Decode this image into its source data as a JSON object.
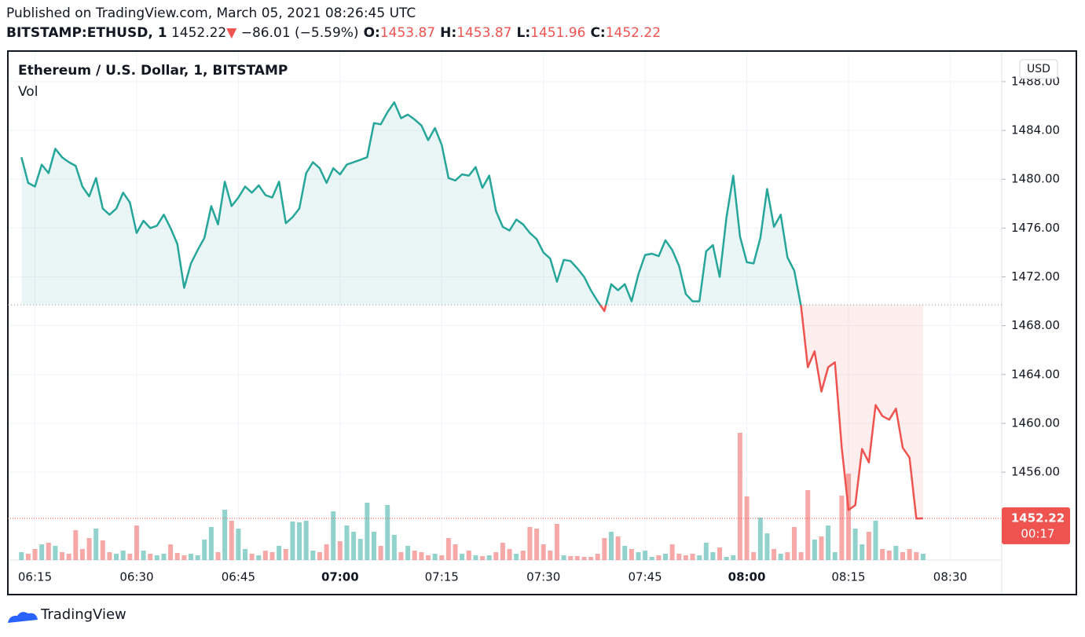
{
  "header": {
    "published": "Published on TradingView.com, March 05, 2021 08:26:45 UTC",
    "symbol": "BITSTAMP:ETHUSD, 1",
    "price": "1452.22",
    "arrow": "▼",
    "change": "−86.01 (−5.59%)",
    "ohlc": [
      {
        "label": "O:",
        "value": "1453.87"
      },
      {
        "label": "H:",
        "value": "1453.87"
      },
      {
        "label": "L:",
        "value": "1451.96"
      },
      {
        "label": "C:",
        "value": "1452.22"
      }
    ]
  },
  "chart_data": {
    "type": "baseline",
    "title": "Ethereum / U.S. Dollar, 1, BITSTAMP",
    "volume_label": "Vol",
    "currency": "USD",
    "countdown": "00:17",
    "up_color": "#26a69a",
    "down_color": "#ef5350",
    "baseline": 1469.7,
    "grid": true,
    "x": [
      373,
      374,
      375,
      376,
      377,
      378,
      379,
      380,
      381,
      382,
      383,
      384,
      385,
      386,
      387,
      388,
      389,
      390,
      391,
      392,
      393,
      394,
      395,
      396,
      397,
      398,
      399,
      400,
      401,
      402,
      403,
      404,
      405,
      406,
      407,
      408,
      409,
      410,
      411,
      412,
      413,
      414,
      415,
      416,
      417,
      418,
      419,
      420,
      421,
      422,
      423,
      424,
      425,
      426,
      427,
      428,
      429,
      430,
      431,
      432,
      433,
      434,
      435,
      436,
      437,
      438,
      439,
      440,
      441,
      442,
      443,
      444,
      445,
      446,
      447,
      448,
      449,
      450,
      451,
      452,
      453,
      454,
      455,
      456,
      457,
      458,
      459,
      460,
      461,
      462,
      463,
      464,
      465,
      466,
      467,
      468,
      469,
      470,
      471,
      472,
      473,
      474,
      475,
      476,
      477,
      478,
      479,
      480,
      481,
      482,
      483,
      484,
      485,
      486,
      487,
      488,
      489,
      490,
      491,
      492,
      493,
      494,
      495,
      496,
      497,
      498,
      499,
      500,
      501,
      502,
      503,
      504,
      505,
      506
    ],
    "values": [
      1481.8,
      1479.7,
      1479.4,
      1481.2,
      1480.5,
      1482.5,
      1481.8,
      1481.4,
      1481.1,
      1479.4,
      1478.6,
      1480.1,
      1477.6,
      1477.1,
      1477.6,
      1478.9,
      1478.1,
      1475.6,
      1476.6,
      1476.0,
      1476.2,
      1477.1,
      1476.0,
      1474.7,
      1471.1,
      1473.1,
      1474.2,
      1475.2,
      1477.8,
      1476.3,
      1479.8,
      1477.8,
      1478.5,
      1479.4,
      1478.9,
      1479.5,
      1478.7,
      1478.5,
      1479.8,
      1476.4,
      1476.9,
      1477.6,
      1480.5,
      1481.4,
      1480.9,
      1479.7,
      1480.9,
      1480.4,
      1481.2,
      1481.4,
      1481.6,
      1481.8,
      1484.6,
      1484.5,
      1485.5,
      1486.3,
      1485.0,
      1485.3,
      1484.9,
      1484.4,
      1483.2,
      1484.2,
      1482.8,
      1480.1,
      1479.9,
      1480.4,
      1480.3,
      1481.0,
      1479.3,
      1480.3,
      1477.4,
      1476.1,
      1475.8,
      1476.7,
      1476.3,
      1475.6,
      1475.1,
      1474.0,
      1473.5,
      1471.6,
      1473.4,
      1473.3,
      1472.7,
      1472.0,
      1470.9,
      1470.0,
      1469.2,
      1471.4,
      1470.9,
      1471.4,
      1470.0,
      1472.2,
      1473.8,
      1473.9,
      1473.7,
      1475.0,
      1474.2,
      1472.9,
      1470.6,
      1470.0,
      1470.0,
      1474.1,
      1474.6,
      1472.0,
      1476.9,
      1480.3,
      1475.3,
      1473.2,
      1473.1,
      1475.2,
      1479.2,
      1476.1,
      1477.1,
      1473.6,
      1472.5,
      1469.6,
      1464.6,
      1465.9,
      1462.6,
      1464.6,
      1465.0,
      1458.0,
      1452.9,
      1453.3,
      1457.9,
      1456.8,
      1461.5,
      1460.6,
      1460.3,
      1461.2,
      1458.0,
      1457.2,
      1452.2,
      1452.22
    ],
    "volume": [
      10,
      8,
      14,
      20,
      22,
      18,
      10,
      8,
      38,
      14,
      28,
      40,
      25,
      10,
      8,
      12,
      8,
      44,
      12,
      8,
      6,
      8,
      20,
      9,
      6,
      8,
      6,
      26,
      42,
      10,
      64,
      50,
      40,
      14,
      8,
      6,
      12,
      10,
      18,
      14,
      49,
      48,
      50,
      12,
      10,
      20,
      62,
      24,
      44,
      36,
      27,
      73,
      36,
      18,
      70,
      32,
      10,
      18,
      12,
      10,
      6,
      8,
      6,
      28,
      20,
      8,
      12,
      6,
      5,
      6,
      10,
      22,
      14,
      8,
      12,
      42,
      40,
      20,
      12,
      46,
      6,
      5,
      5,
      4,
      4,
      8,
      28,
      36,
      30,
      18,
      14,
      10,
      12,
      4,
      6,
      8,
      20,
      8,
      6,
      8,
      6,
      22,
      10,
      16,
      4,
      6,
      162,
      81,
      10,
      54,
      34,
      14,
      8,
      10,
      42,
      10,
      89,
      26,
      30,
      44,
      10,
      82,
      110,
      40,
      20,
      36,
      50,
      14,
      12,
      18,
      10,
      14,
      10,
      8
    ],
    "volume_lim": [
      0,
      647
    ],
    "xlim": [
      371,
      517.6
    ],
    "xticks": [
      {
        "value": 375,
        "label": "06:15"
      },
      {
        "value": 390,
        "label": "06:30"
      },
      {
        "value": 405,
        "label": "06:45"
      },
      {
        "value": 420,
        "label": "07:00"
      },
      {
        "value": 435,
        "label": "07:15"
      },
      {
        "value": 450,
        "label": "07:30"
      },
      {
        "value": 465,
        "label": "07:45"
      },
      {
        "value": 480,
        "label": "08:00"
      },
      {
        "value": 495,
        "label": "08:15"
      },
      {
        "value": 510,
        "label": "08:30"
      }
    ],
    "bold_xticks": [
      420,
      480
    ],
    "ylim": [
      1448.8,
      1490.44
    ],
    "yticks": [
      {
        "value": 1456,
        "label": "1456.00"
      },
      {
        "value": 1460,
        "label": "1460.00"
      },
      {
        "value": 1464,
        "label": "1464.00"
      },
      {
        "value": 1468,
        "label": "1468.00"
      },
      {
        "value": 1472,
        "label": "1472.00"
      },
      {
        "value": 1476,
        "label": "1476.00"
      },
      {
        "value": 1480,
        "label": "1480.00"
      },
      {
        "value": 1484,
        "label": "1484.00"
      },
      {
        "value": 1488,
        "label": "1488.00"
      }
    ]
  }
}
